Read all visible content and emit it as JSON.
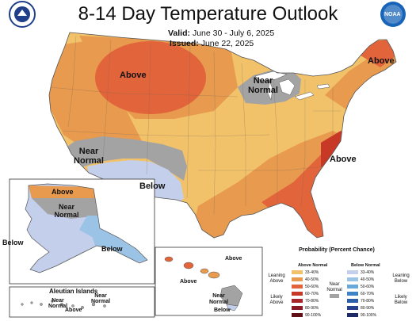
{
  "header": {
    "title": "8-14 Day Temperature Outlook",
    "valid_label": "Valid:",
    "valid_value": "June 30 - July 6, 2025",
    "issued_label": "Issued:",
    "issued_value": "June 22, 2025"
  },
  "logos": {
    "left": {
      "name": "department-of-commerce-seal",
      "color": "#1f3f8a"
    },
    "right": {
      "name": "noaa-logo",
      "color": "#1764b8",
      "text": "NOAA"
    }
  },
  "labels": {
    "conus_above_north": "Above",
    "conus_above_ne": "Above",
    "conus_above_se": "Above",
    "conus_near_normal_gl": "Near Normal",
    "conus_near_normal_west": "Near Normal",
    "conus_below_sw": "Below",
    "ak_above": "Above",
    "ak_near_normal": "Near Normal",
    "ak_below_west": "Below",
    "ak_below_se": "Below",
    "aleutian_title": "Aleutian Islands",
    "aleutian_near_normal_w": "Near Normal",
    "aleutian_near_normal_e": "Near Normal",
    "aleutian_above": "Above",
    "hi_above_1": "Above",
    "hi_above_2": "Above",
    "hi_near_normal": "Near Normal",
    "hi_below": "Below"
  },
  "legend": {
    "title": "Probability (Percent Chance)",
    "above_header": "Above Normal",
    "below_header": "Below Normal",
    "above_ranges": [
      "33-40%",
      "40-50%",
      "50-60%",
      "60-70%",
      "70-80%",
      "80-90%",
      "90-100%"
    ],
    "below_ranges": [
      "33-40%",
      "40-50%",
      "50-60%",
      "60-70%",
      "70-80%",
      "80-90%",
      "90-100%"
    ],
    "above_colors": [
      "#f2c26a",
      "#e89a4e",
      "#e2643a",
      "#c83826",
      "#a9252c",
      "#8a1b24",
      "#611016"
    ],
    "below_colors": [
      "#c4cfec",
      "#9bc3e6",
      "#69a9da",
      "#3f83c7",
      "#2c5ea8",
      "#27408c",
      "#1e2a66"
    ],
    "near_normal_color": "#a3a3a3",
    "leaning_above": "Leaning Above",
    "likely_above": "Likely Above",
    "near_normal": "Near Normal",
    "leaning_below": "Leaning Below",
    "likely_below": "Likely Below"
  },
  "colors": {
    "above_33_40": "#f2c26a",
    "above_40_50": "#e89a4e",
    "above_50_60": "#e2643a",
    "above_60_70": "#c83826",
    "near_normal": "#a3a3a3",
    "below_33_40": "#c4cfec",
    "below_40_50": "#9bc3e6",
    "water": "#ffffff",
    "outline": "#555555"
  }
}
